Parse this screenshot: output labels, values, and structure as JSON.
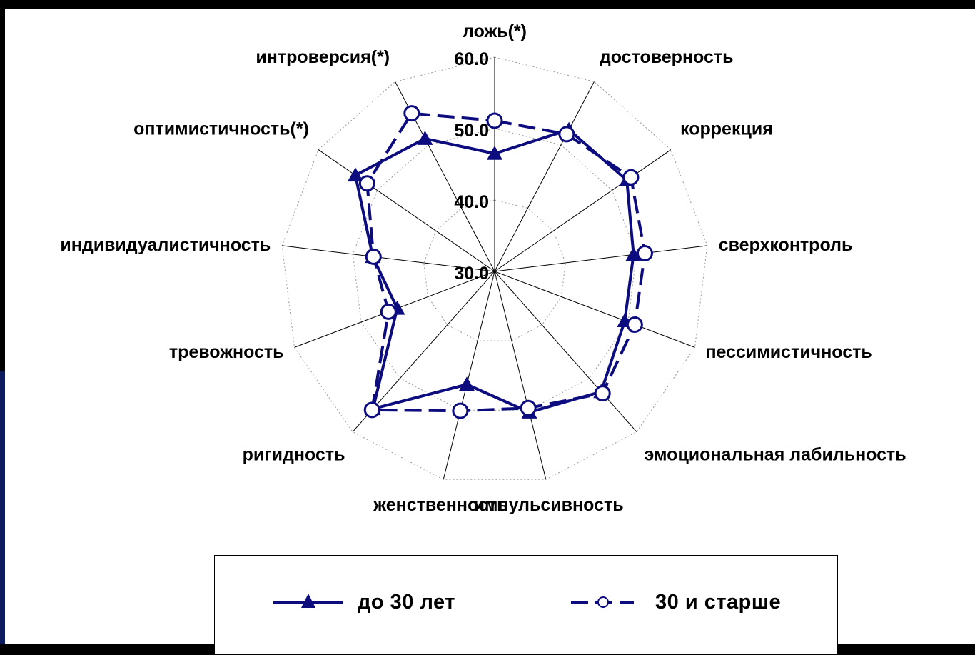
{
  "chart_data": {
    "type": "radar",
    "title": "",
    "axes": [
      "ложь(*)",
      "достоверность",
      "коррекция",
      "сверхконтроль",
      "пессимистичность",
      "эмоциональная лабильность",
      "импульсивность",
      "женственность",
      "ригидность",
      "тревожность",
      "индивидуалистичность",
      "оптимистичность(*)",
      "интроверсия(*)"
    ],
    "rlim": [
      30,
      60
    ],
    "ticks": [
      30,
      40,
      50,
      60
    ],
    "tick_labels": [
      "30.0",
      "40.0",
      "50.0",
      "60.0"
    ],
    "grid": true,
    "legend_position": "bottom",
    "series": [
      {
        "name": "до 30 лет",
        "marker": "triangle",
        "line": "solid",
        "color": "#0c0c7e",
        "values": [
          46.5,
          52.4,
          52.5,
          49.6,
          49.5,
          52.5,
          50.3,
          46.3,
          55.7,
          44.6,
          47.2,
          53.7,
          51.0
        ]
      },
      {
        "name": "30 и старше",
        "marker": "circle",
        "line": "dashed",
        "color": "#0c0c7e",
        "values": [
          51.1,
          51.7,
          53.2,
          51.2,
          51.0,
          52.8,
          49.7,
          50.1,
          55.9,
          45.9,
          47.1,
          51.7,
          55.0
        ]
      }
    ]
  }
}
